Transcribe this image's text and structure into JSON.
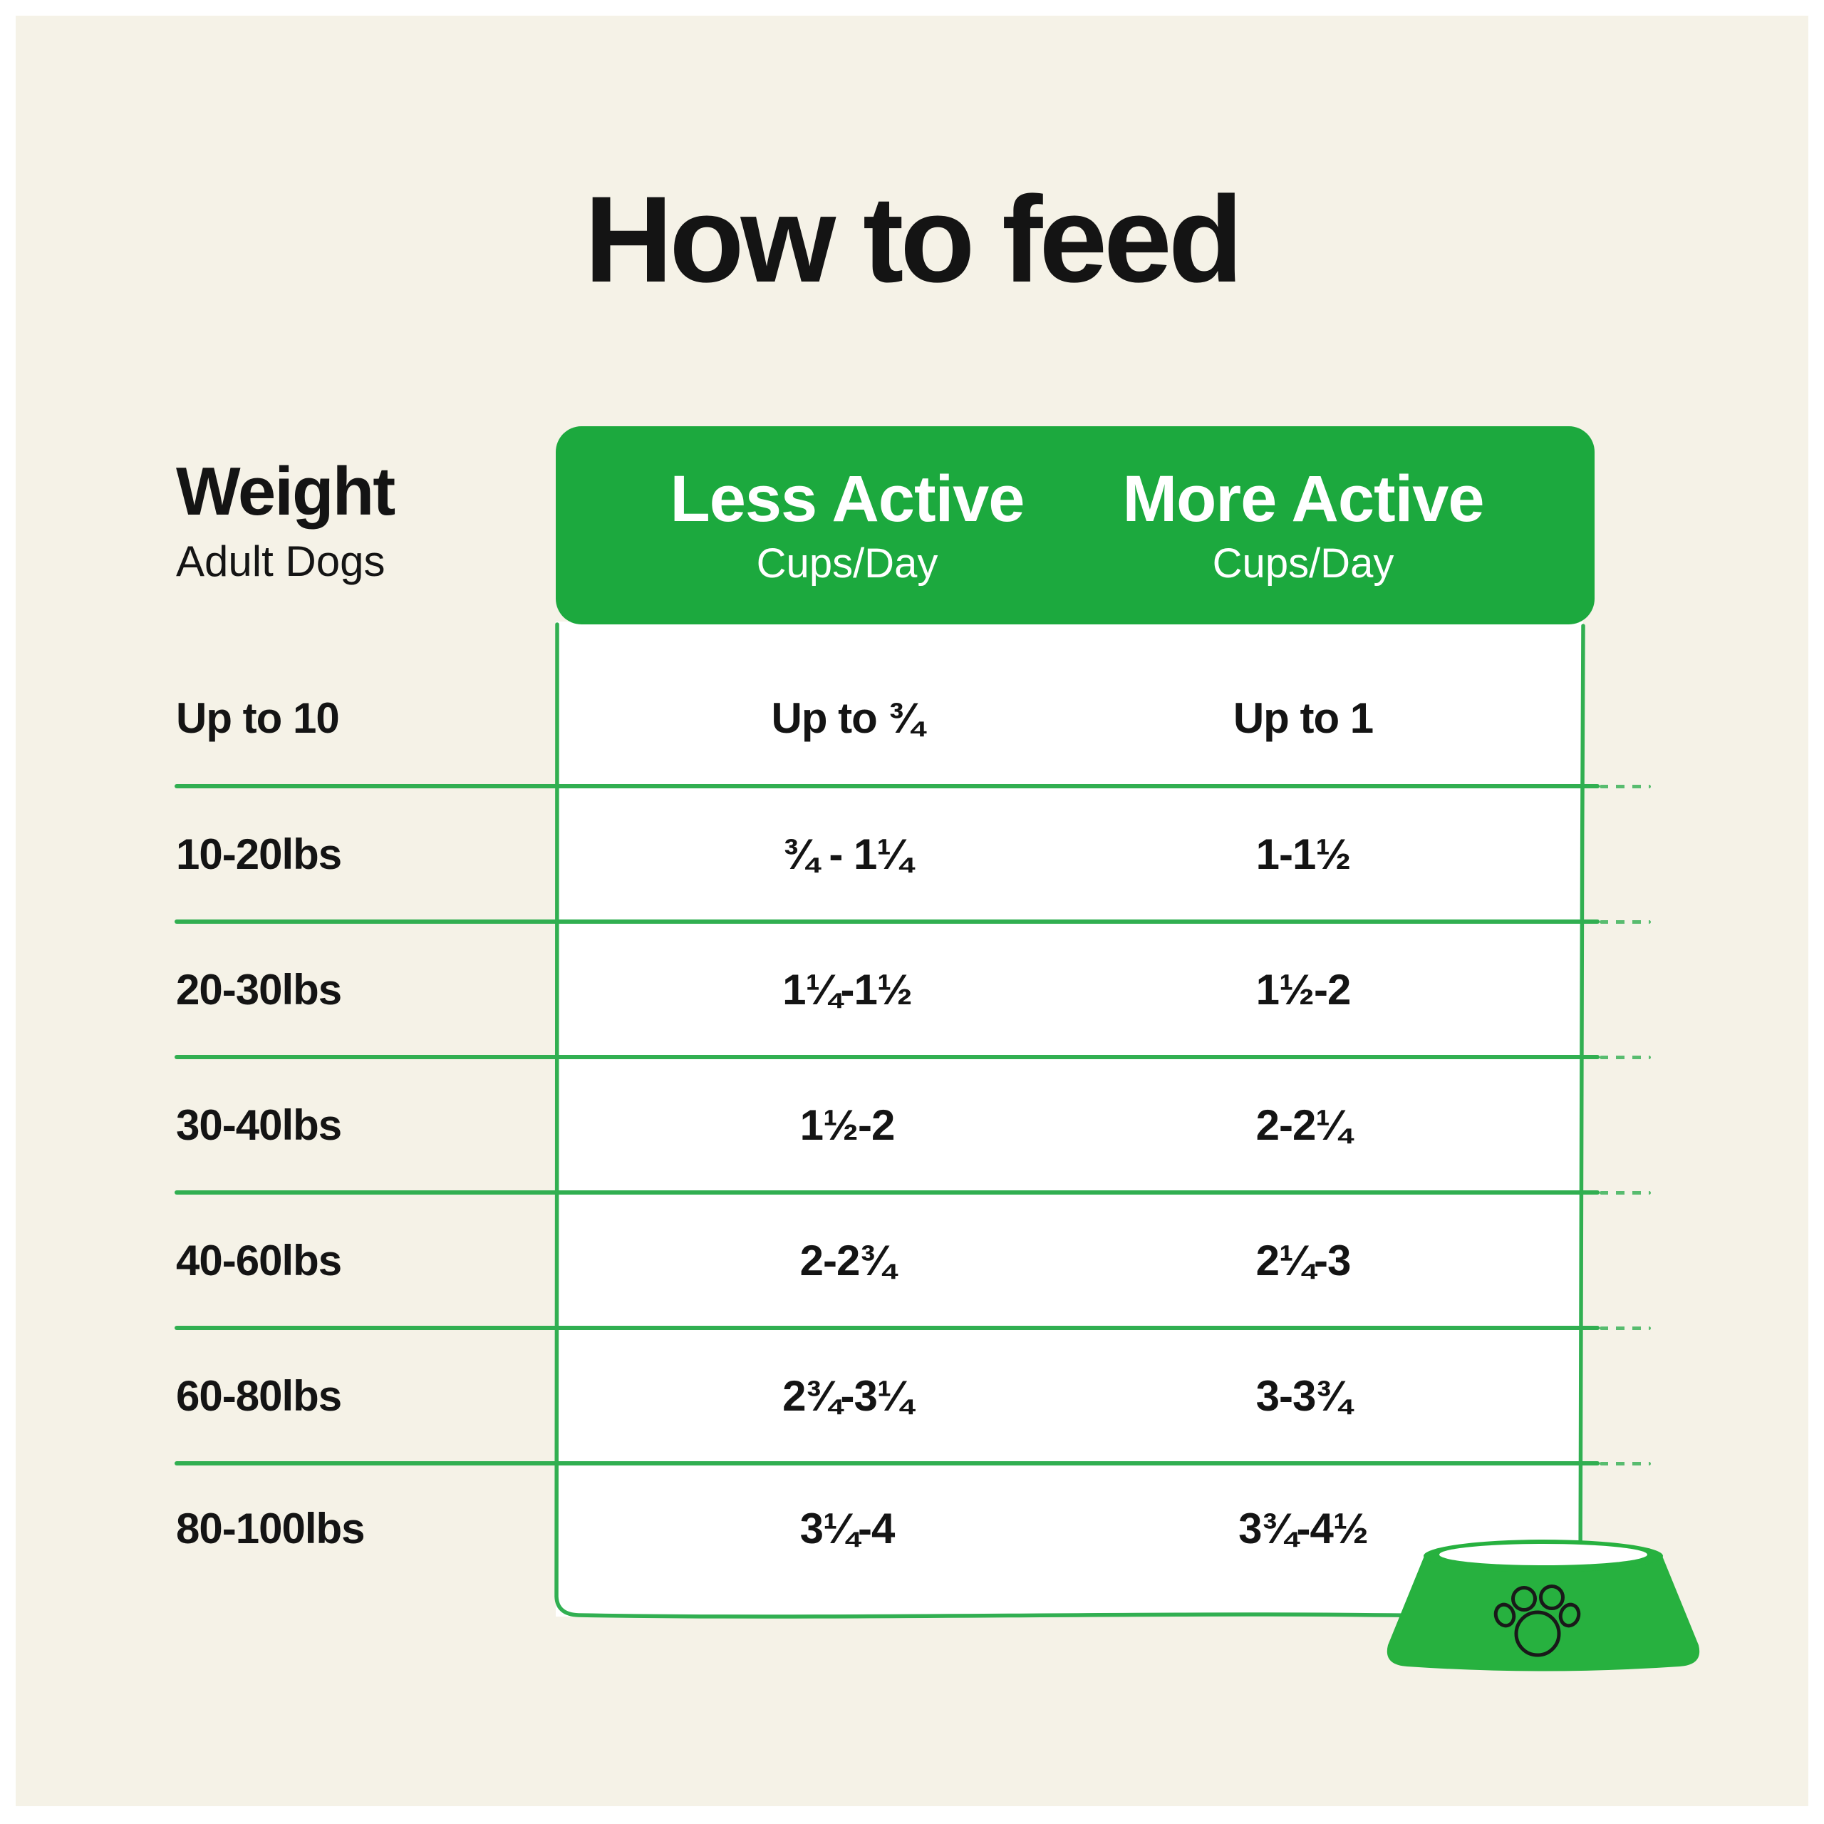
{
  "colors": {
    "frame_background": "#FFFFFF",
    "canvas_background": "#F5F2E7",
    "header_green": "#1CA93E",
    "line_green": "#31AF51",
    "bowl_green": "#27B13F",
    "ink": "#141414",
    "table_background": "#FFFFFF",
    "header_text": "#FFFFFF",
    "paw_outline": "#191919"
  },
  "icons": {
    "bowl": "dog-bowl-paw-icon"
  },
  "chart_data": {
    "type": "table",
    "title": "How to feed",
    "row_header": {
      "title": "Weight",
      "subtitle": "Adult Dogs"
    },
    "columns": [
      {
        "label": "Less Active",
        "unit": "Cups/Day"
      },
      {
        "label": "More Active",
        "unit": "Cups/Day"
      }
    ],
    "rows": [
      {
        "weight": "Up to 10",
        "less_active": "Up to ¾",
        "more_active": "Up to 1"
      },
      {
        "weight": "10-20lbs",
        "less_active": "¾ - 1¼",
        "more_active": "1-1½"
      },
      {
        "weight": "20-30lbs",
        "less_active": "1¼-1½",
        "more_active": "1½-2"
      },
      {
        "weight": "30-40lbs",
        "less_active": "1½-2",
        "more_active": "2-2¼"
      },
      {
        "weight": "40-60lbs",
        "less_active": "2-2¾",
        "more_active": "2¼-3"
      },
      {
        "weight": "60-80lbs",
        "less_active": "2¾-3¼",
        "more_active": "3-3¾"
      },
      {
        "weight": "80-100lbs",
        "less_active": "3¼-4",
        "more_active": "3¾-4½"
      }
    ],
    "layout_hints": {
      "grid": "horizontal separators only",
      "legend": "none"
    }
  }
}
